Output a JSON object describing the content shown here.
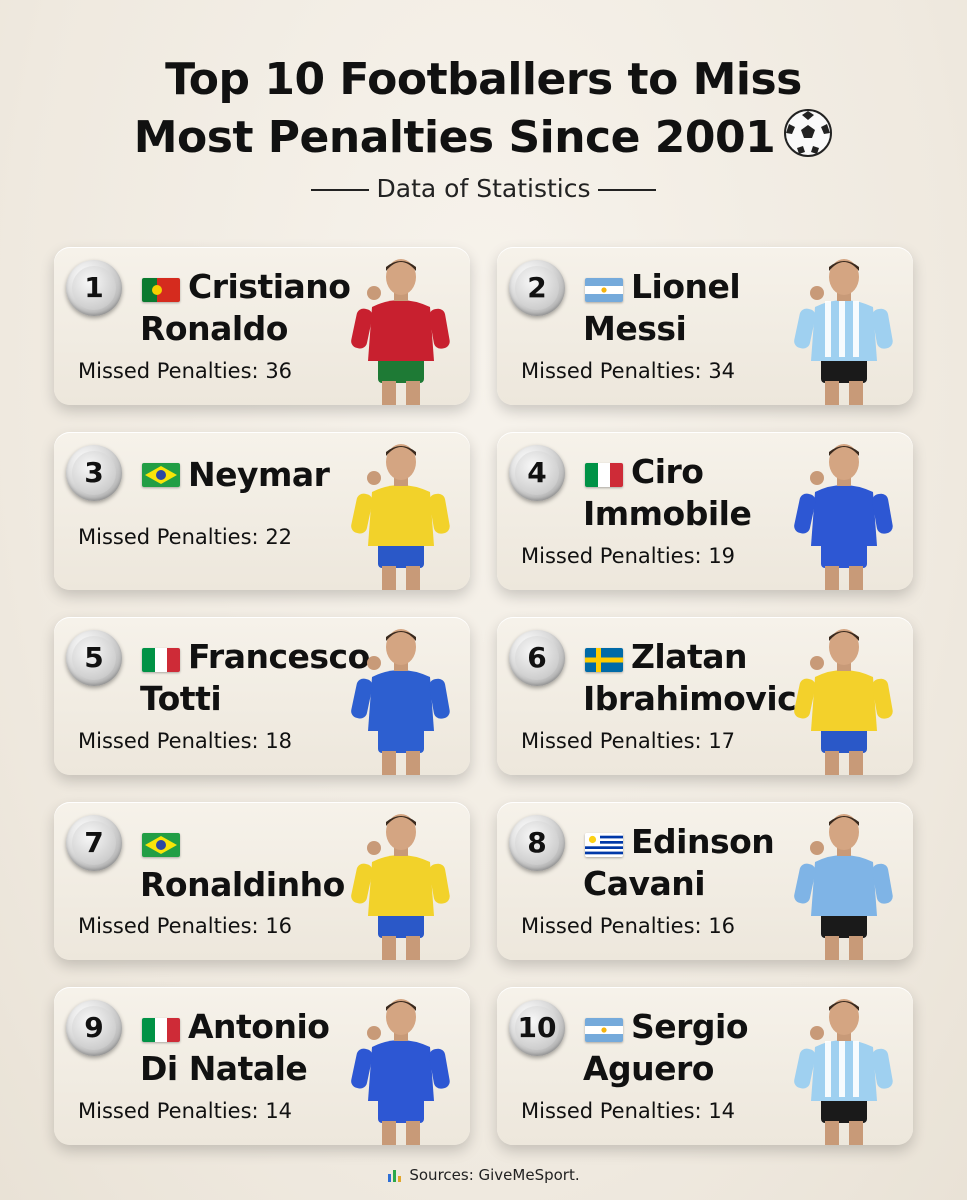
{
  "title_line1": "Top 10 Footballers to Miss",
  "title_line2": "Most Penalties Since 2001",
  "ball_icon": "soccer-ball-icon",
  "subtitle": "Data of Statistics",
  "players": [
    {
      "rank": "1",
      "flag": "portugal",
      "name1": "Cristiano",
      "name2": "Ronaldo",
      "label": "Missed Penalties:",
      "value": "36",
      "shirt": "#c8202f",
      "shorts": "#1e7a35"
    },
    {
      "rank": "2",
      "flag": "argentina",
      "name1": "Lionel",
      "name2": "Messi",
      "label": "Missed Penalties:",
      "value": "34",
      "shirt": "#9fd0f0",
      "shorts": "#1a1a1a"
    },
    {
      "rank": "3",
      "flag": "brazil",
      "name1": "Neymar",
      "name2": "",
      "label": "Missed Penalties:",
      "value": "22",
      "shirt": "#f2d22a",
      "shorts": "#2a58c8"
    },
    {
      "rank": "4",
      "flag": "italy",
      "name1": "Ciro",
      "name2": "Immobile",
      "label": "Missed Penalties:",
      "value": "19",
      "shirt": "#2d57d3",
      "shorts": "#2d57d3"
    },
    {
      "rank": "5",
      "flag": "italy",
      "name1": "Francesco",
      "name2": "Totti",
      "label": "Missed Penalties:",
      "value": "18",
      "shirt": "#2d5fd0",
      "shorts": "#2d5fd0"
    },
    {
      "rank": "6",
      "flag": "sweden",
      "name1": "Zlatan",
      "name2": "Ibrahimovic",
      "label": "Missed Penalties:",
      "value": "17",
      "shirt": "#f3d12b",
      "shorts": "#2a58c8"
    },
    {
      "rank": "7",
      "flag": "brazil",
      "name1": "",
      "name2": "Ronaldinho",
      "label": "Missed Penalties:",
      "value": "16",
      "shirt": "#f2d22a",
      "shorts": "#2a58c8"
    },
    {
      "rank": "8",
      "flag": "uruguay",
      "name1": "Edinson",
      "name2": "Cavani",
      "label": "Missed Penalties:",
      "value": "16",
      "shirt": "#7fb4e6",
      "shorts": "#1a1a1a"
    },
    {
      "rank": "9",
      "flag": "italy",
      "name1": "Antonio",
      "name2": "Di Natale",
      "label": "Missed Penalties:",
      "value": "14",
      "shirt": "#2d57d3",
      "shorts": "#2d57d3"
    },
    {
      "rank": "10",
      "flag": "argentina",
      "name1": "Sergio",
      "name2": "Aguero",
      "label": "Missed Penalties:",
      "value": "14",
      "shirt": "#9fd0f0",
      "shorts": "#1a1a1a"
    }
  ],
  "source": "Sources: GiveMeSport.",
  "source_icon": "bar-chart-icon"
}
